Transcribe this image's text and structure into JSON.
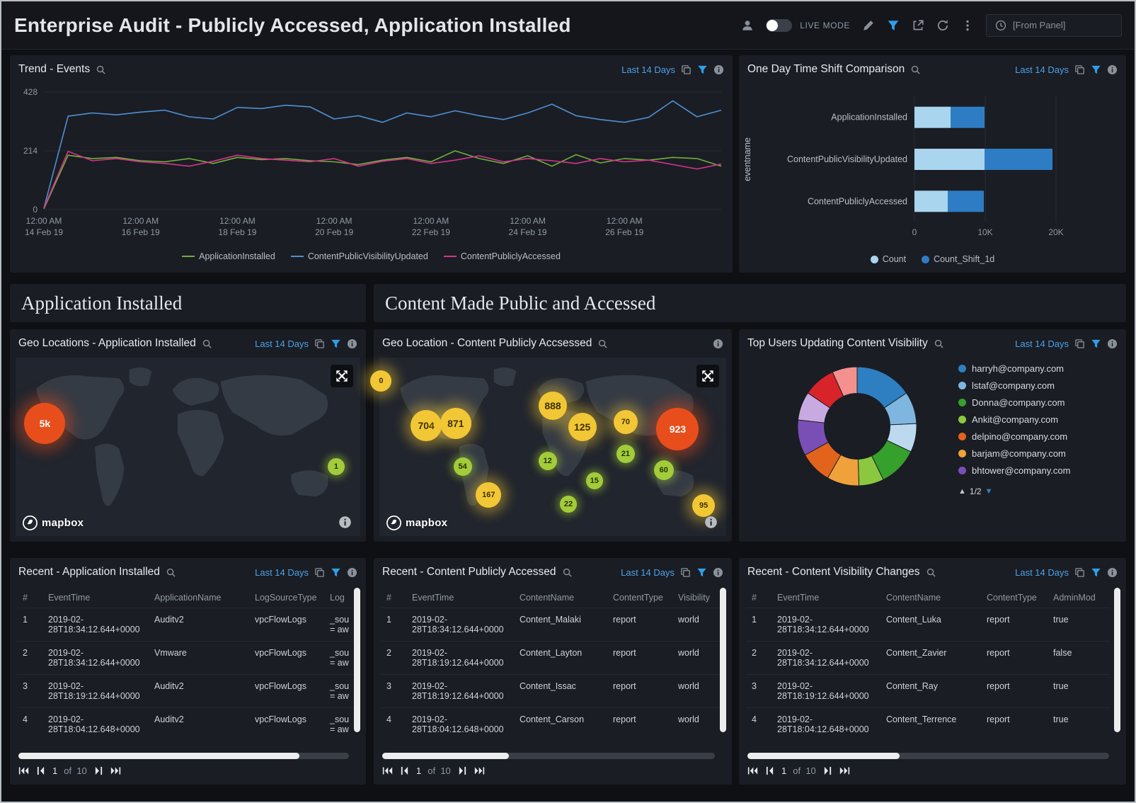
{
  "header": {
    "title": "Enterprise Audit - Publicly Accessed, Application Installed",
    "live_mode": "LIVE MODE",
    "from_panel": "[From Panel]"
  },
  "sections": {
    "app": "Application Installed",
    "content": "Content Made Public and Accessed"
  },
  "panels": {
    "trend": {
      "title": "Trend - Events",
      "time_range": "Last 14 Days"
    },
    "timeshift": {
      "title": "One Day Time Shift Comparison",
      "time_range": "Last 14 Days"
    },
    "geo_app": {
      "title": "Geo Locations - Application Installed",
      "time_range": "Last 14 Days"
    },
    "geo_content": {
      "title": "Geo Location - Content Publicly Accsessed"
    },
    "top_users": {
      "title": "Top Users Updating Content Visibility",
      "time_range": "Last 14 Days",
      "legend_pagination": "1/2"
    },
    "recent_app": {
      "title": "Recent - Application Installed",
      "time_range": "Last 14 Days"
    },
    "recent_content": {
      "title": "Recent - Content Publicly Accessed",
      "time_range": "Last 14 Days"
    },
    "recent_vis": {
      "title": "Recent - Content Visibility Changes",
      "time_range": "Last 14 Days"
    }
  },
  "mapbox_label": "mapbox",
  "pagination": {
    "page": "1",
    "of": "of",
    "total": "10"
  },
  "chart_data": [
    {
      "id": "trend",
      "type": "line",
      "title": "Trend - Events",
      "ylim": [
        0,
        428
      ],
      "yticks": [
        "0",
        "214",
        "428"
      ],
      "xticks": [
        [
          "12:00 AM",
          "14 Feb 19"
        ],
        [
          "12:00 AM",
          "16 Feb 19"
        ],
        [
          "12:00 AM",
          "18 Feb 19"
        ],
        [
          "12:00 AM",
          "20 Feb 19"
        ],
        [
          "12:00 AM",
          "22 Feb 19"
        ],
        [
          "12:00 AM",
          "24 Feb 19"
        ],
        [
          "12:00 AM",
          "26 Feb 19"
        ]
      ],
      "series": [
        {
          "name": "ApplicationInstalled",
          "color": "#6faf3a",
          "values": [
            3,
            198,
            186,
            190,
            178,
            174,
            186,
            168,
            190,
            182,
            186,
            178,
            174,
            164,
            180,
            190,
            174,
            214,
            186,
            168,
            196,
            158,
            200,
            170,
            186,
            180,
            190,
            186,
            158
          ]
        },
        {
          "name": "ContentPublicVisibilityUpdated",
          "color": "#4f90d1",
          "values": [
            5,
            340,
            352,
            345,
            355,
            362,
            338,
            330,
            372,
            368,
            380,
            374,
            330,
            342,
            318,
            352,
            338,
            360,
            342,
            328,
            352,
            384,
            342,
            328,
            318,
            336,
            396,
            338,
            362
          ]
        },
        {
          "name": "ContentPubliclyAccessed",
          "color": "#d8338b",
          "values": [
            6,
            212,
            178,
            186,
            174,
            168,
            158,
            176,
            198,
            186,
            180,
            174,
            186,
            158,
            176,
            186,
            168,
            180,
            196,
            174,
            186,
            178,
            168,
            186,
            174,
            180,
            164,
            148,
            166
          ]
        }
      ]
    },
    {
      "id": "timeshift",
      "type": "bar",
      "orientation": "horizontal",
      "title": "One Day Time Shift Comparison",
      "ylabel": "eventname",
      "categories": [
        "ApplicationInstalled",
        "ContentPublicVisibilityUpdated",
        "ContentPubliclyAccessed"
      ],
      "series": [
        {
          "name": "Count",
          "color": "#a9d5ef",
          "values": [
            5100,
            9900,
            4700
          ]
        },
        {
          "name": "Count_Shift_1d",
          "color": "#2e7dc4",
          "values": [
            4800,
            9600,
            5100
          ]
        }
      ],
      "xlim": [
        0,
        20000
      ],
      "xticks": [
        "0",
        "10K",
        "20K"
      ]
    },
    {
      "id": "top_users",
      "type": "pie",
      "title": "Top Users Updating Content Visibility",
      "segments": [
        {
          "color": "#2d7fc1",
          "value": 16
        },
        {
          "color": "#7fb6e0",
          "value": 9
        },
        {
          "color": "#bdd9ee",
          "value": 8
        },
        {
          "color": "#36a02c",
          "value": 11
        },
        {
          "color": "#8bc83f",
          "value": 7
        },
        {
          "color": "#f0a13c",
          "value": 9
        },
        {
          "color": "#e2641c",
          "value": 9
        },
        {
          "color": "#7a4fb5",
          "value": 10
        },
        {
          "color": "#c9aae0",
          "value": 8
        },
        {
          "color": "#d8232a",
          "value": 9
        },
        {
          "color": "#f4918e",
          "value": 7
        }
      ],
      "legend": [
        {
          "label": "harryh@company.com",
          "color": "#2d7fc1"
        },
        {
          "label": "lstaf@company.com",
          "color": "#7fb6e0"
        },
        {
          "label": "Donna@company.com",
          "color": "#36a02c"
        },
        {
          "label": "Ankit@company.com",
          "color": "#8bc83f"
        },
        {
          "label": "delpino@company.com",
          "color": "#e2641c"
        },
        {
          "label": "barjam@company.com",
          "color": "#f0a13c"
        },
        {
          "label": "bhtower@company.com",
          "color": "#7a4fb5"
        }
      ],
      "legend_pagination": "1/2"
    }
  ],
  "maps": {
    "geo_app": {
      "bubbles": [
        {
          "label": "5k",
          "x": 8.5,
          "y": 37,
          "d": 58,
          "type": "red"
        },
        {
          "label": "1",
          "x": 93,
          "y": 61,
          "d": 24,
          "type": "green"
        }
      ]
    },
    "geo_content": {
      "bubbles": [
        {
          "label": "0",
          "x": 0.5,
          "y": 13,
          "d": 30,
          "type": "yellow"
        },
        {
          "label": "704",
          "x": 13.5,
          "y": 38,
          "d": 44,
          "type": "yellow"
        },
        {
          "label": "871",
          "x": 22,
          "y": 37,
          "d": 44,
          "type": "yellow"
        },
        {
          "label": "888",
          "x": 50,
          "y": 27,
          "d": 40,
          "type": "yellow"
        },
        {
          "label": "125",
          "x": 58.5,
          "y": 39,
          "d": 40,
          "type": "yellow"
        },
        {
          "label": "70",
          "x": 71,
          "y": 36,
          "d": 34,
          "type": "yellow"
        },
        {
          "label": "923",
          "x": 86,
          "y": 40,
          "d": 60,
          "type": "red"
        },
        {
          "label": "21",
          "x": 71,
          "y": 54,
          "d": 26,
          "type": "green"
        },
        {
          "label": "12",
          "x": 48.5,
          "y": 58,
          "d": 26,
          "type": "green"
        },
        {
          "label": "54",
          "x": 24,
          "y": 61,
          "d": 26,
          "type": "green"
        },
        {
          "label": "60",
          "x": 82,
          "y": 63,
          "d": 28,
          "type": "green"
        },
        {
          "label": "15",
          "x": 62,
          "y": 69,
          "d": 24,
          "type": "green"
        },
        {
          "label": "167",
          "x": 31.5,
          "y": 77,
          "d": 36,
          "type": "yellow"
        },
        {
          "label": "22",
          "x": 54.5,
          "y": 82,
          "d": 24,
          "type": "green"
        },
        {
          "label": "95",
          "x": 93.5,
          "y": 83,
          "d": 32,
          "type": "yellow"
        }
      ]
    }
  },
  "tables": {
    "recent_app": {
      "columns": [
        "#",
        "EventTime",
        "ApplicationName",
        "LogSourceType",
        "Log"
      ],
      "rows": [
        [
          "1",
          "2019-02-28T18:34:12.644+0000",
          "Auditv2",
          "vpcFlowLogs",
          "_sou = aw"
        ],
        [
          "2",
          "2019-02-28T18:34:12.644+0000",
          "Vmware",
          "vpcFlowLogs",
          "_sou = aw"
        ],
        [
          "3",
          "2019-02-28T18:19:12.644+0000",
          "Auditv2",
          "vpcFlowLogs",
          "_sou = aw"
        ],
        [
          "4",
          "2019-02-28T18:04:12.648+0000",
          "Auditv2",
          "vpcFlowLogs",
          "_sou = aw"
        ]
      ]
    },
    "recent_content": {
      "columns": [
        "#",
        "EventTime",
        "ContentName",
        "ContentType",
        "Visibility"
      ],
      "rows": [
        [
          "1",
          "2019-02-28T18:34:12.644+0000",
          "Content_Malaki",
          "report",
          "world"
        ],
        [
          "2",
          "2019-02-28T18:19:12.644+0000",
          "Content_Layton",
          "report",
          "world"
        ],
        [
          "3",
          "2019-02-28T18:19:12.644+0000",
          "Content_Issac",
          "report",
          "world"
        ],
        [
          "4",
          "2019-02-28T18:04:12.648+0000",
          "Content_Carson",
          "report",
          "world"
        ]
      ]
    },
    "recent_vis": {
      "columns": [
        "#",
        "EventTime",
        "ContentName",
        "ContentType",
        "AdminMod"
      ],
      "rows": [
        [
          "1",
          "2019-02-28T18:34:12.644+0000",
          "Content_Luka",
          "report",
          "true"
        ],
        [
          "2",
          "2019-02-28T18:34:12.644+0000",
          "Content_Zavier",
          "report",
          "false"
        ],
        [
          "3",
          "2019-02-28T18:19:12.644+0000",
          "Content_Ray",
          "report",
          "true"
        ],
        [
          "4",
          "2019-02-28T18:04:12.648+0000",
          "Content_Terrence",
          "report",
          "true"
        ]
      ]
    }
  }
}
